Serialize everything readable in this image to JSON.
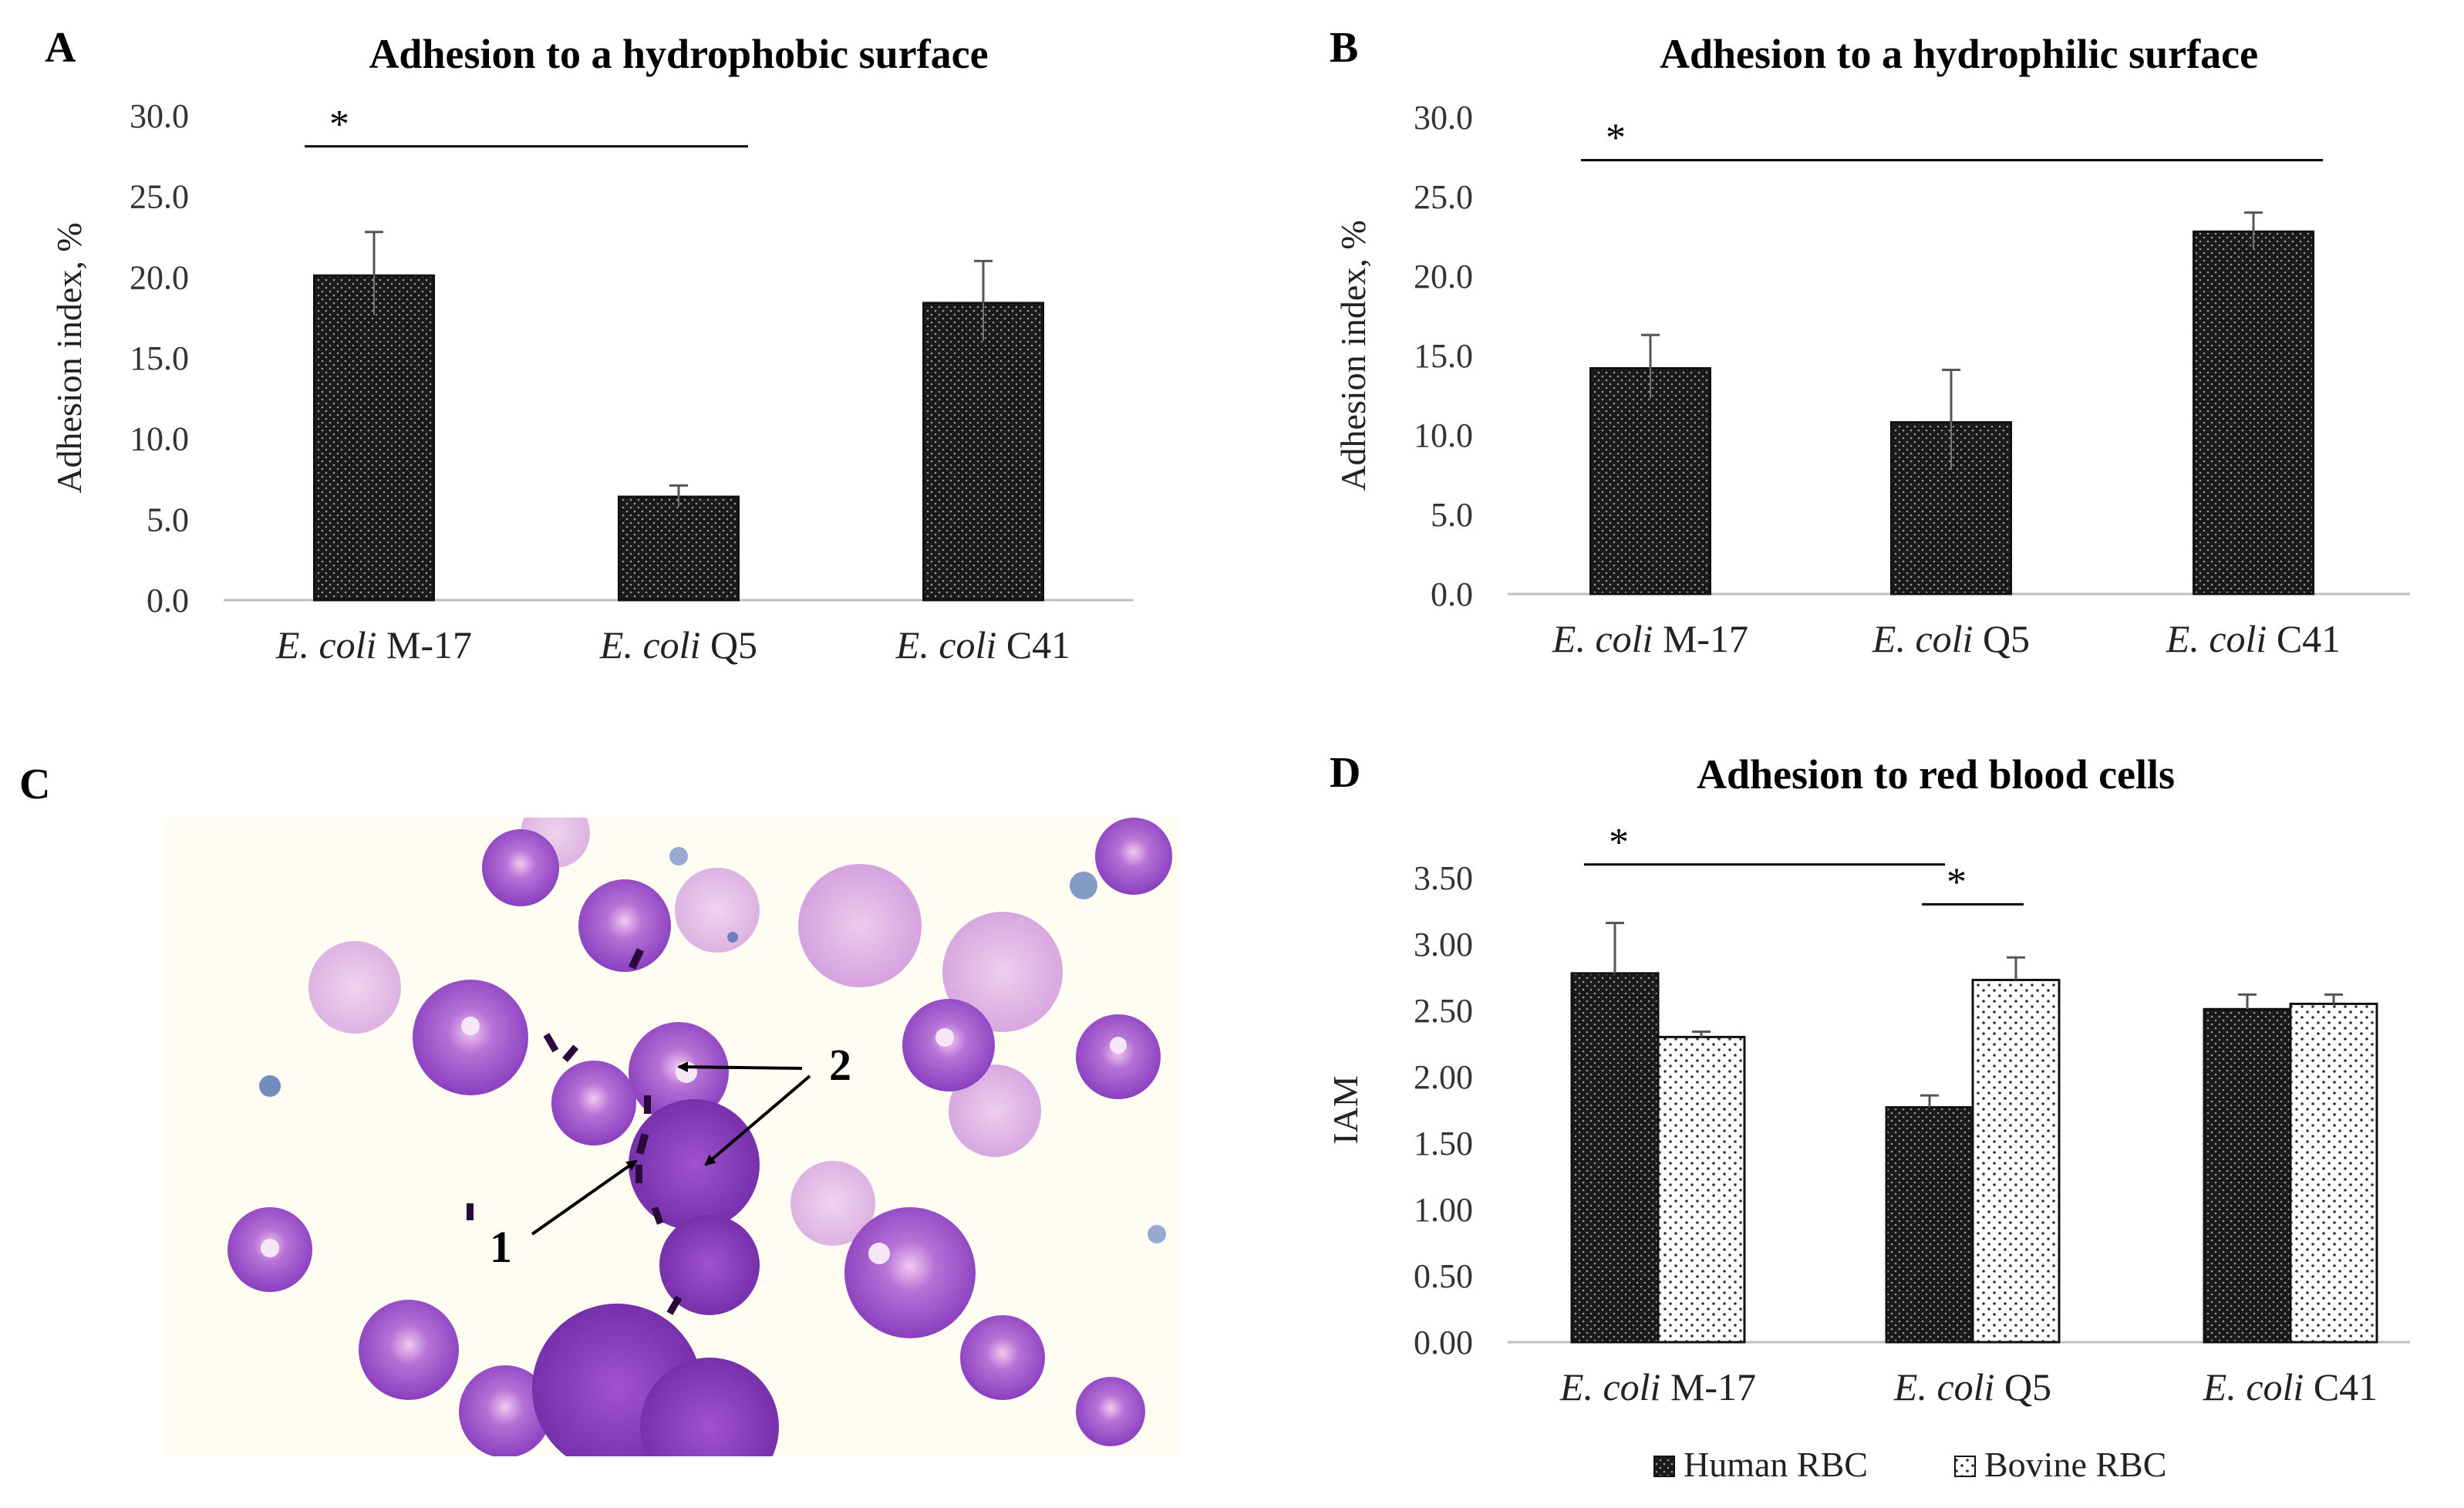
{
  "panels": {
    "A": "A",
    "B": "B",
    "C": "C",
    "D": "D"
  },
  "micrograph": {
    "annotation_1": "1",
    "annotation_2": "2"
  },
  "colors": {
    "dark_bar": "#1a1a1a",
    "light_bar": "#ffffff",
    "cell_purple": "#9b4fc9",
    "background": "#fffdf3"
  },
  "chart_data": [
    {
      "id": "A",
      "type": "bar",
      "title": "Adhesion to a hydrophobic surface",
      "ylabel": "Adhesion index, %",
      "xlabel": "",
      "ylim": [
        0,
        30
      ],
      "yticks": [
        "0.0",
        "5.0",
        "10.0",
        "15.0",
        "20.0",
        "25.0",
        "30.0"
      ],
      "categories": [
        {
          "italic": "E. coli",
          "rest": " M-17"
        },
        {
          "italic": "E. coli",
          "rest": " Q5"
        },
        {
          "italic": "E. coli",
          "rest": " C41"
        }
      ],
      "series": [
        {
          "name": "",
          "values": [
            20.1,
            6.4,
            18.4
          ],
          "errors": [
            2.7,
            0.7,
            2.6
          ]
        }
      ],
      "significance": [
        {
          "from": 0,
          "to": 1,
          "label": "*",
          "level": 28.1
        }
      ]
    },
    {
      "id": "B",
      "type": "bar",
      "title": "Adhesion to a hydrophilic surface",
      "ylabel": "Adhesion index, %",
      "xlabel": "",
      "ylim": [
        0,
        30
      ],
      "yticks": [
        "0.0",
        "5.0",
        "10.0",
        "15.0",
        "20.0",
        "25.0",
        "30.0"
      ],
      "categories": [
        {
          "italic": "E. coli",
          "rest": " M-17"
        },
        {
          "italic": "E. coli",
          "rest": " Q5"
        },
        {
          "italic": "E. coli",
          "rest": " C41"
        }
      ],
      "series": [
        {
          "name": "",
          "values": [
            14.2,
            10.8,
            22.8
          ],
          "errors": [
            2.1,
            3.3,
            1.2
          ]
        }
      ],
      "significance": [
        {
          "from": 0,
          "to": 2,
          "label": "*",
          "level": 27.3
        }
      ]
    },
    {
      "id": "D",
      "type": "bar",
      "title": "Adhesion to red blood cells",
      "ylabel": "IAM",
      "xlabel": "",
      "ylim": [
        0,
        3.5
      ],
      "yticks": [
        "0.00",
        "0.50",
        "1.00",
        "1.50",
        "2.00",
        "2.50",
        "3.00",
        "3.50"
      ],
      "categories": [
        {
          "italic": "E. coli",
          "rest": " M-17"
        },
        {
          "italic": "E. coli",
          "rest": " Q5"
        },
        {
          "italic": "E. coli",
          "rest": " C41"
        }
      ],
      "series": [
        {
          "name": "Human RBC",
          "values": [
            2.78,
            1.77,
            2.51
          ],
          "errors": [
            0.38,
            0.09,
            0.11
          ]
        },
        {
          "name": "Bovine RBC",
          "values": [
            2.3,
            2.73,
            2.55
          ],
          "errors": [
            0.04,
            0.17,
            0.07
          ]
        }
      ],
      "significance": [
        {
          "from_group": 0,
          "from_series": 0,
          "to_group": 1,
          "to_series": 0,
          "label": "*",
          "level": 3.6
        },
        {
          "from_group": 1,
          "from_series": 0,
          "to_group": 1,
          "to_series": 1,
          "label": "*",
          "level": 3.3
        }
      ],
      "legend": [
        "Human RBC",
        "Bovine RBC"
      ]
    }
  ]
}
